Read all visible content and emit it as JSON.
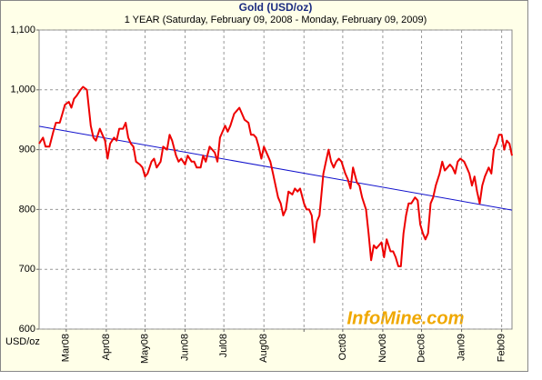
{
  "chart_data": {
    "type": "line",
    "title": "Gold (USD/oz)",
    "subtitle": "1 YEAR (Saturday, February 09, 2008  -  Monday, February 09, 2009)",
    "ylabel": "USD/oz",
    "watermark": "InfoMine.com",
    "grid": true,
    "xlim": [
      0,
      366
    ],
    "xticks": [
      {
        "value": 21,
        "label": "Mar08"
      },
      {
        "value": 52,
        "label": "Apr08"
      },
      {
        "value": 82,
        "label": "May08"
      },
      {
        "value": 113,
        "label": "Jun08"
      },
      {
        "value": 143,
        "label": "Jul08"
      },
      {
        "value": 174,
        "label": "Aug08"
      },
      {
        "value": 205,
        "label": null
      },
      {
        "value": 235,
        "label": "Oct08"
      },
      {
        "value": 266,
        "label": "Nov08"
      },
      {
        "value": 296,
        "label": "Dec08"
      },
      {
        "value": 327,
        "label": "Jan09"
      },
      {
        "value": 358,
        "label": "Feb09"
      }
    ],
    "ylim": [
      600,
      1100
    ],
    "yticks": [
      600,
      700,
      800,
      900,
      {
        "value": 1000,
        "label": "1,000"
      },
      {
        "value": 1100,
        "label": "1,100"
      }
    ],
    "x": [
      0,
      3,
      5,
      8,
      11,
      13,
      16,
      18,
      20,
      23,
      25,
      27,
      29,
      32,
      34,
      37,
      39,
      40,
      42,
      44,
      47,
      49,
      51,
      53,
      55,
      58,
      60,
      62,
      65,
      67,
      69,
      71,
      73,
      75,
      78,
      80,
      82,
      84,
      87,
      89,
      91,
      94,
      96,
      99,
      101,
      103,
      106,
      108,
      110,
      113,
      115,
      118,
      120,
      122,
      125,
      127,
      129,
      132,
      134,
      136,
      138,
      140,
      142,
      144,
      146,
      148,
      151,
      153,
      155,
      157,
      159,
      162,
      164,
      166,
      168,
      170,
      172,
      174,
      177,
      179,
      181,
      183,
      185,
      187,
      189,
      191,
      193,
      196,
      198,
      200,
      202,
      205,
      207,
      209,
      211,
      213,
      215,
      217,
      220,
      222,
      224,
      226,
      228,
      230,
      232,
      234,
      237,
      239,
      241,
      243,
      246,
      248,
      250,
      253,
      255,
      257,
      259,
      261,
      263,
      265,
      267,
      269,
      272,
      274,
      276,
      278,
      280,
      282,
      284,
      286,
      288,
      291,
      293,
      295,
      297,
      299,
      301,
      303,
      305,
      307,
      310,
      312,
      314,
      316,
      318,
      320,
      322,
      324,
      326,
      329,
      331,
      333,
      335,
      337,
      339,
      341,
      343,
      345,
      348,
      350,
      352,
      354,
      356,
      358,
      360,
      362,
      364,
      366
    ],
    "series": [
      {
        "color": "#ee0000",
        "values": [
          910,
          920,
          905,
          905,
          930,
          945,
          945,
          960,
          975,
          980,
          970,
          985,
          990,
          1000,
          1005,
          1000,
          960,
          940,
          920,
          915,
          935,
          925,
          915,
          885,
          910,
          920,
          915,
          935,
          935,
          945,
          920,
          910,
          905,
          880,
          875,
          870,
          855,
          860,
          880,
          885,
          870,
          880,
          905,
          900,
          925,
          915,
          890,
          880,
          885,
          875,
          890,
          880,
          880,
          870,
          870,
          890,
          880,
          905,
          900,
          895,
          880,
          920,
          930,
          940,
          930,
          940,
          960,
          965,
          970,
          960,
          950,
          945,
          925,
          925,
          920,
          905,
          885,
          905,
          890,
          880,
          860,
          840,
          820,
          810,
          790,
          800,
          830,
          825,
          835,
          830,
          835,
          810,
          800,
          800,
          790,
          745,
          780,
          790,
          860,
          880,
          900,
          880,
          870,
          880,
          885,
          880,
          860,
          850,
          835,
          870,
          845,
          840,
          820,
          800,
          760,
          715,
          740,
          735,
          740,
          745,
          720,
          750,
          730,
          730,
          720,
          705,
          705,
          760,
          790,
          810,
          810,
          820,
          815,
          775,
          760,
          750,
          760,
          810,
          820,
          840,
          860,
          880,
          865,
          870,
          875,
          870,
          860,
          880,
          885,
          880,
          870,
          860,
          840,
          855,
          830,
          810,
          840,
          855,
          870,
          860,
          900,
          910,
          925,
          925,
          900,
          915,
          910,
          890
        ]
      }
    ],
    "trend": {
      "color": "#1010cc",
      "x": [
        0,
        366
      ],
      "values": [
        939,
        799
      ]
    }
  }
}
